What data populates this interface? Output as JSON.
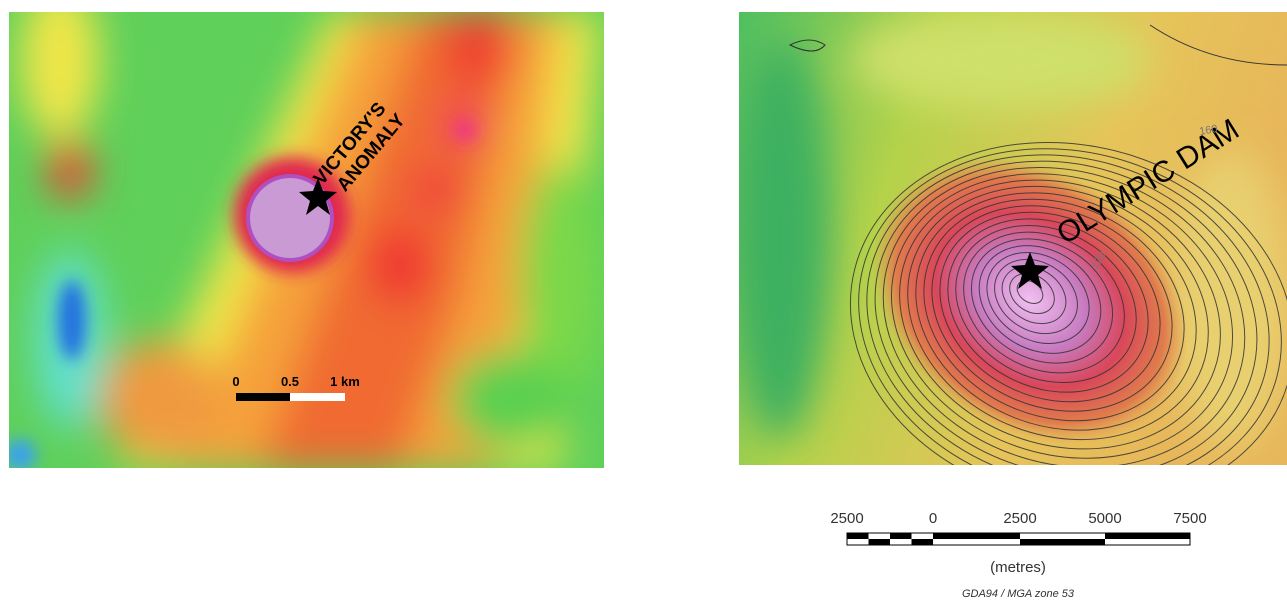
{
  "left_map": {
    "label_lines": [
      "VICTORY'S",
      "ANOMALY"
    ],
    "scale_bar": {
      "ticks": [
        "0",
        "0.5",
        "1 km"
      ]
    }
  },
  "right_map": {
    "label": "OLYMPIC DAM",
    "contour_labels": [
      "160",
      "120"
    ],
    "scale_bar": {
      "ticks": [
        "2500",
        "0",
        "2500",
        "5000",
        "7500"
      ],
      "unit": "(metres)",
      "projection": "GDA94 / MGA zone 53"
    }
  }
}
